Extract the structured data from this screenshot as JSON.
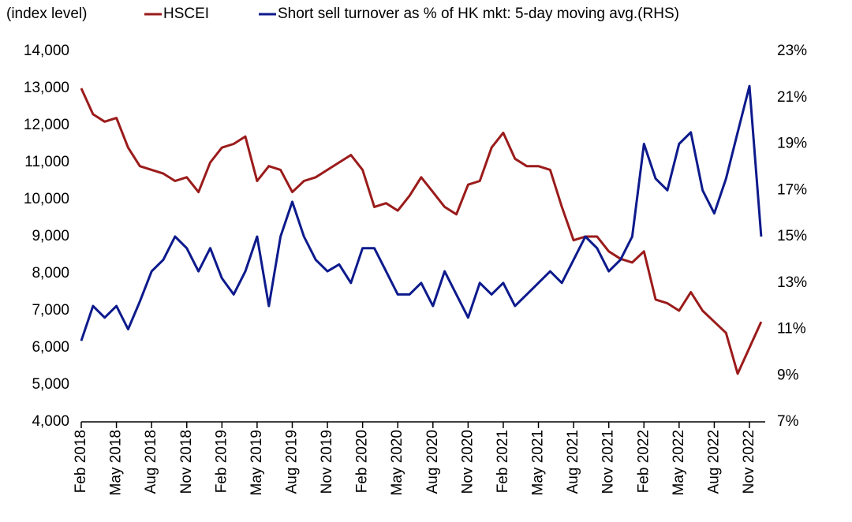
{
  "chart_data": {
    "type": "line",
    "y_label": "(index level)",
    "x": [
      "Feb 2018",
      "Mar 2018",
      "Apr 2018",
      "May 2018",
      "Jun 2018",
      "Jul 2018",
      "Aug 2018",
      "Sep 2018",
      "Oct 2018",
      "Nov 2018",
      "Dec 2018",
      "Jan 2019",
      "Feb 2019",
      "Mar 2019",
      "Apr 2019",
      "May 2019",
      "Jun 2019",
      "Jul 2019",
      "Aug 2019",
      "Sep 2019",
      "Oct 2019",
      "Nov 2019",
      "Dec 2019",
      "Jan 2020",
      "Feb 2020",
      "Mar 2020",
      "Apr 2020",
      "May 2020",
      "Jun 2020",
      "Jul 2020",
      "Aug 2020",
      "Sep 2020",
      "Oct 2020",
      "Nov 2020",
      "Dec 2020",
      "Jan 2021",
      "Feb 2021",
      "Mar 2021",
      "Apr 2021",
      "May 2021",
      "Jun 2021",
      "Jul 2021",
      "Aug 2021",
      "Sep 2021",
      "Oct 2021",
      "Nov 2021",
      "Dec 2021",
      "Jan 2022",
      "Feb 2022",
      "Mar 2022",
      "Apr 2022",
      "May 2022",
      "Jun 2022",
      "Jul 2022",
      "Aug 2022",
      "Sep 2022",
      "Oct 2022",
      "Nov 2022",
      "Dec 2022"
    ],
    "xticks": [
      "Feb 2018",
      "May 2018",
      "Aug 2018",
      "Nov 2018",
      "Feb 2019",
      "May 2019",
      "Aug 2019",
      "Nov 2019",
      "Feb 2020",
      "May 2020",
      "Aug 2020",
      "Nov 2020",
      "Feb 2021",
      "May 2021",
      "Aug 2021",
      "Nov 2021",
      "Feb 2022",
      "May 2022",
      "Aug 2022",
      "Nov 2022"
    ],
    "ylim": [
      4000,
      14000
    ],
    "yticks": [
      {
        "value": 4000,
        "label": "4,000"
      },
      {
        "value": 5000,
        "label": "5,000"
      },
      {
        "value": 6000,
        "label": "6,000"
      },
      {
        "value": 7000,
        "label": "7,000"
      },
      {
        "value": 8000,
        "label": "8,000"
      },
      {
        "value": 9000,
        "label": "9,000"
      },
      {
        "value": 10000,
        "label": "10,000"
      },
      {
        "value": 11000,
        "label": "11,000"
      },
      {
        "value": 12000,
        "label": "12,000"
      },
      {
        "value": 13000,
        "label": "13,000"
      },
      {
        "value": 14000,
        "label": "14,000"
      }
    ],
    "y2lim": [
      7,
      23
    ],
    "y2ticks": [
      {
        "value": 7,
        "label": "7%"
      },
      {
        "value": 9,
        "label": "9%"
      },
      {
        "value": 11,
        "label": "11%"
      },
      {
        "value": 13,
        "label": "13%"
      },
      {
        "value": 15,
        "label": "15%"
      },
      {
        "value": 17,
        "label": "17%"
      },
      {
        "value": 19,
        "label": "19%"
      },
      {
        "value": 21,
        "label": "21%"
      },
      {
        "value": 23,
        "label": "23%"
      }
    ],
    "series": [
      {
        "name": "HSCEI",
        "color": "#9b1b1b",
        "values": [
          13000,
          12300,
          12100,
          12200,
          11400,
          10900,
          10800,
          10700,
          10500,
          10600,
          10200,
          11000,
          11400,
          11500,
          11700,
          10500,
          10900,
          10800,
          10200,
          10500,
          10600,
          10800,
          11000,
          11200,
          10800,
          9800,
          9900,
          9700,
          10100,
          10600,
          10200,
          9800,
          9600,
          10400,
          10500,
          11400,
          11800,
          11100,
          10900,
          10900,
          10800,
          9800,
          8900,
          9000,
          9000,
          8600,
          8400,
          8300,
          8600,
          7300,
          7200,
          7000,
          7500,
          7000,
          6700,
          6400,
          5300,
          6000,
          6700
        ]
      },
      {
        "name": "Short sell turnover as % of HK mkt: 5-day moving avg.(RHS)",
        "color": "#0d1a8c",
        "axis": "y2",
        "values": [
          10.5,
          12,
          11.5,
          12,
          11,
          12.2,
          13.5,
          14,
          15,
          14.5,
          13.5,
          14.5,
          13.2,
          12.5,
          13.5,
          15,
          12,
          15,
          16.5,
          15,
          14,
          13.5,
          13.8,
          13,
          14.5,
          14.5,
          13.5,
          12.5,
          12.5,
          13,
          12,
          13.5,
          12.5,
          11.5,
          13,
          12.5,
          13,
          12,
          12.5,
          13,
          13.5,
          13,
          14,
          15,
          14.5,
          13.5,
          14,
          15,
          19,
          17.5,
          17,
          19,
          19.5,
          17,
          16,
          17.5,
          19.5,
          21.5,
          15
        ]
      }
    ]
  }
}
